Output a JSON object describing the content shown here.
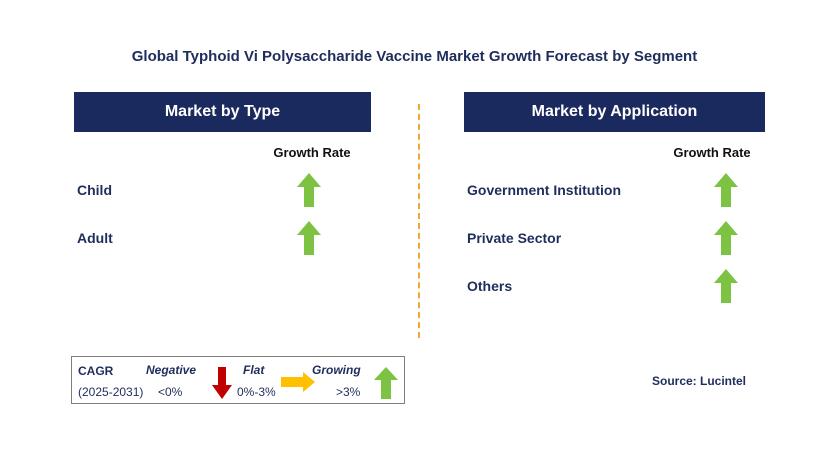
{
  "title": "Global Typhoid Vi Polysaccharide Vaccine Market Growth Forecast by Segment",
  "left_panel": {
    "header": "Market by Type",
    "growth_rate_label": "Growth Rate",
    "items": [
      {
        "label": "Child",
        "trend": "growing"
      },
      {
        "label": "Adult",
        "trend": "growing"
      }
    ]
  },
  "right_panel": {
    "header": "Market by Application",
    "growth_rate_label": "Growth Rate",
    "items": [
      {
        "label": "Government Institution",
        "trend": "growing"
      },
      {
        "label": "Private Sector",
        "trend": "growing"
      },
      {
        "label": "Others",
        "trend": "growing"
      }
    ]
  },
  "legend": {
    "cagr_label": "CAGR",
    "period": "(2025-2031)",
    "negative": {
      "label": "Negative",
      "range": "<0%",
      "color": "#c00000"
    },
    "flat": {
      "label": "Flat",
      "range": "0%-3%",
      "color": "#ffc000"
    },
    "growing": {
      "label": "Growing",
      "range": ">3%",
      "color": "#7dc242"
    }
  },
  "source": "Source: Lucintel",
  "colors": {
    "header_bg": "#1a2a5e",
    "title": "#1f2d5c",
    "divider": "#f0a830",
    "up_arrow": "#7dc242",
    "down_arrow": "#c00000",
    "flat_arrow": "#ffc000"
  }
}
